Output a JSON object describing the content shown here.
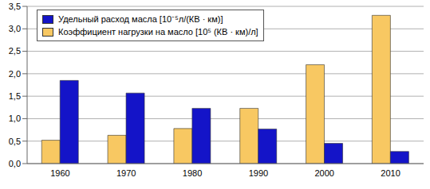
{
  "chart_data": {
    "type": "bar",
    "categories": [
      "1960",
      "1970",
      "1980",
      "1990",
      "2000",
      "2010"
    ],
    "series": [
      {
        "name": "Удельный расход масла [10⁻⁵л/(КВ · км)]",
        "color": "#1414c8",
        "values": [
          1.85,
          1.57,
          1.23,
          0.77,
          0.45,
          0.27
        ]
      },
      {
        "name": "Коэффициент нагрузки на масло [10⁵ (КВ · км)/л]",
        "color": "#f8c862",
        "values": [
          0.52,
          0.63,
          0.78,
          1.23,
          2.2,
          3.3
        ]
      }
    ],
    "ylim": [
      0,
      3.5
    ],
    "yticks": [
      {
        "value": 0,
        "label": "0,0"
      },
      {
        "value": 0.5,
        "label": "0,5"
      },
      {
        "value": 1,
        "label": "1,0"
      },
      {
        "value": 1.5,
        "label": "1,5"
      },
      {
        "value": 2,
        "label": "2,0"
      },
      {
        "value": 2.5,
        "label": "2,5"
      },
      {
        "value": 3,
        "label": "3,0"
      },
      {
        "value": 3.5,
        "label": "3,5"
      }
    ],
    "grid": true,
    "legend": "upper left"
  }
}
